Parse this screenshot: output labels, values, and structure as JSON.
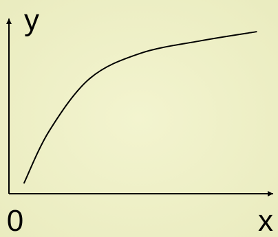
{
  "colors": {
    "background": "#EEEFC4",
    "curve": "#000000",
    "axis": "#000000",
    "text": "#000000"
  },
  "chart_data": {
    "type": "line",
    "title": "",
    "xlabel": "x",
    "ylabel": "y",
    "origin_label": "0",
    "grid": false,
    "legend": "none",
    "xlim": [
      0,
      1
    ],
    "ylim": [
      0,
      1
    ],
    "series": [
      {
        "points": [
          [
            0.06,
            0.06
          ],
          [
            0.16,
            0.35
          ],
          [
            0.32,
            0.64
          ],
          [
            0.52,
            0.78
          ],
          [
            0.76,
            0.85
          ],
          [
            0.98,
            0.9
          ]
        ]
      }
    ]
  }
}
